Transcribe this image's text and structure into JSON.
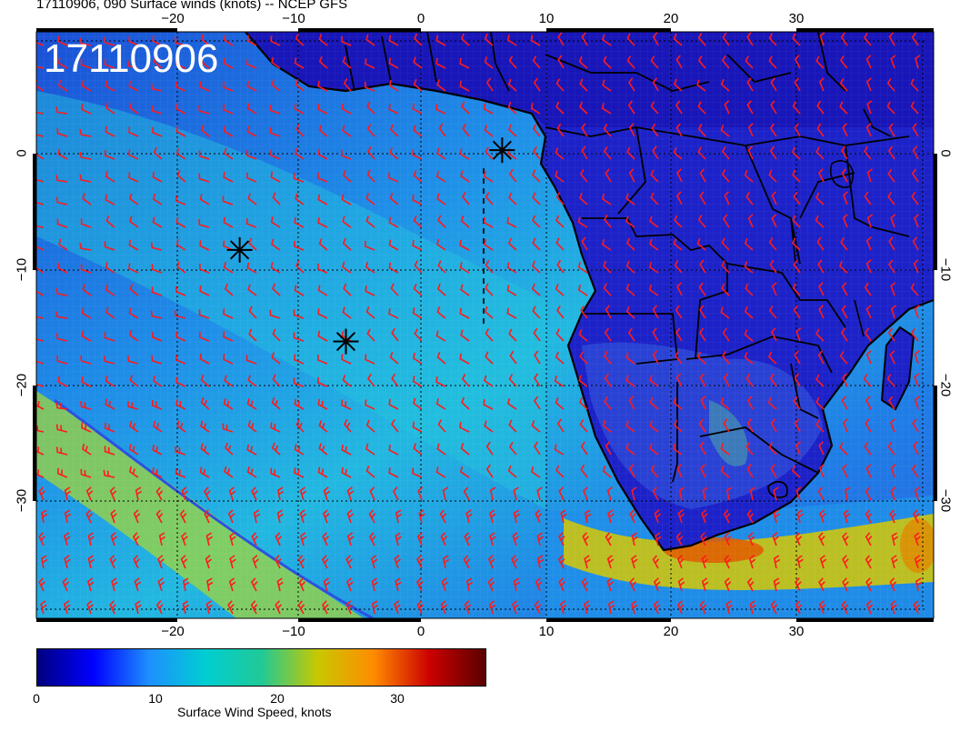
{
  "title": "17110906, 090 Surface winds (knots) -- NCEP GFS",
  "map_stamp": "17110906",
  "lon_ticks_top": [
    {
      "value": "−20",
      "lon": -20
    },
    {
      "value": "−10",
      "lon": -10
    },
    {
      "value": "0",
      "lon": 0
    },
    {
      "value": "10",
      "lon": 10
    },
    {
      "value": "20",
      "lon": 20
    },
    {
      "value": "30",
      "lon": 30
    }
  ],
  "lon_ticks_bottom": [
    {
      "value": "−20",
      "lon": -20
    },
    {
      "value": "−10",
      "lon": -10
    },
    {
      "value": "0",
      "lon": 0
    },
    {
      "value": "10",
      "lon": 10
    },
    {
      "value": "20",
      "lon": 20
    },
    {
      "value": "30",
      "lon": 30
    }
  ],
  "lat_ticks": [
    {
      "value": "0",
      "lat": 0
    },
    {
      "value": "−10",
      "lat": -10
    },
    {
      "value": "−20",
      "lat": -20
    },
    {
      "value": "−30",
      "lat": -30
    }
  ],
  "colorbar": {
    "title": "Surface Wind Speed, knots",
    "labels": [
      "0",
      "10",
      "20",
      "30"
    ],
    "min": 0,
    "max": 36,
    "stops": [
      "#000080",
      "#0000ff",
      "#1e90ff",
      "#00ced1",
      "#20c997",
      "#c8c800",
      "#ff8c00",
      "#cc0000",
      "#5a0000"
    ]
  },
  "markers": [
    {
      "name": "storm-marker-1",
      "lon": 6.5,
      "lat": 0.3
    },
    {
      "name": "storm-marker-2",
      "lon": -14.5,
      "lat": -8.3
    },
    {
      "name": "storm-marker-3",
      "lon": -6.0,
      "lat": -16.2
    }
  ],
  "colors": {
    "barb": "#ff1a1a",
    "ocean": "#2a7ee6",
    "land": "#1515b0",
    "coast": "#000000"
  }
}
